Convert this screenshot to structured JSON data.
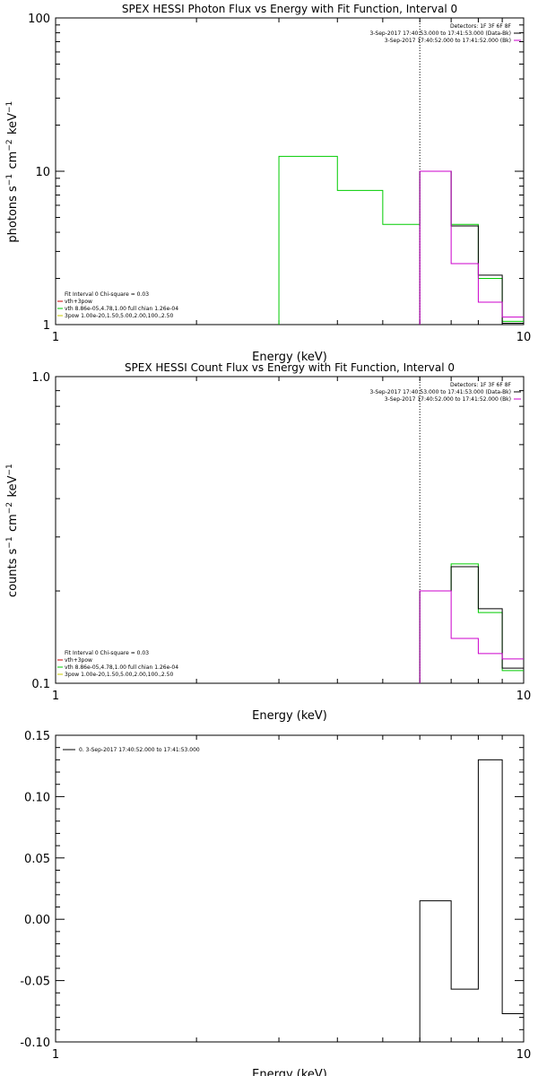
{
  "chart_data": [
    {
      "type": "line",
      "title": "SPEX HESSI Photon Flux vs Energy with Fit Function, Interval 0",
      "xlabel": "Energy (keV)",
      "ylabel": "photons s^-1 cm^-2 keV^-1",
      "xscale": "log",
      "yscale": "log",
      "xlim": [
        1,
        10
      ],
      "ylim": [
        1,
        100
      ],
      "xticks": [
        "1",
        "10"
      ],
      "yticks": [
        "1",
        "10",
        "100"
      ],
      "vline_x": 6.0,
      "legend_top": {
        "placement": "top-right",
        "lines": [
          {
            "text": "Detectors: 1F 3F 6F 8F",
            "color": ""
          },
          {
            "text": "3-Sep-2017 17:40:53.000 to 17:41:53.000 (Data-Bk)",
            "color": "#000000"
          },
          {
            "text": "3-Sep-2017 17:40:52.000 to 17:41:52.000 (Bk)",
            "color": "#cc00cc"
          }
        ]
      },
      "legend_bottom": {
        "placement": "bottom-left",
        "lines": [
          {
            "text": "Fit Interval 0   Chi-square = 0.03",
            "color": ""
          },
          {
            "text": "vth+3pow",
            "color": "#cc0000"
          },
          {
            "text": "vth 8.86e-05,4.78,1.00  full chian 1.26e-04",
            "color": "#00cc00"
          },
          {
            "text": "3pow 1.00e-20,1.50,5.00,2.00,100.,2.50",
            "color": "#cccc00"
          }
        ]
      },
      "series": [
        {
          "color": "#00cc00",
          "edges": [
            3,
            4,
            5,
            6,
            7,
            8,
            9,
            10
          ],
          "values": [
            12.5,
            7.5,
            4.5,
            10,
            4.5,
            2.0,
            1.05
          ]
        },
        {
          "color": "#000000",
          "edges": [
            6,
            7,
            8,
            9,
            10
          ],
          "values": [
            10,
            4.4,
            2.1,
            1.02
          ]
        },
        {
          "color": "#cc00cc",
          "edges": [
            6,
            7,
            8,
            9,
            10
          ],
          "values": [
            10,
            2.5,
            1.4,
            1.12
          ]
        }
      ]
    },
    {
      "type": "line",
      "title": "SPEX HESSI Count Flux vs Energy with Fit Function, Interval 0",
      "xlabel": "Energy (keV)",
      "ylabel": "counts s^-1 cm^-2 keV^-1",
      "xscale": "log",
      "yscale": "log",
      "xlim": [
        1,
        10
      ],
      "ylim": [
        0.1,
        1.0
      ],
      "xticks": [
        "1",
        "10"
      ],
      "yticks": [
        "0.1",
        "1.0"
      ],
      "vline_x": 6.0,
      "legend_top": {
        "placement": "top-right",
        "lines": [
          {
            "text": "Detectors: 1F 3F 6F 8F",
            "color": ""
          },
          {
            "text": "3-Sep-2017 17:40:53.000 to 17:41:53.000 (Data-Bk)",
            "color": "#000000"
          },
          {
            "text": "3-Sep-2017 17:40:52.000 to 17:41:52.000 (Bk)",
            "color": "#cc00cc"
          }
        ]
      },
      "legend_bottom": {
        "placement": "bottom-left",
        "lines": [
          {
            "text": "Fit Interval 0   Chi-square = 0.03",
            "color": ""
          },
          {
            "text": "vth+3pow",
            "color": "#cc0000"
          },
          {
            "text": "vth 8.86e-05,4.78,1.00  full chian 1.26e-04",
            "color": "#00cc00"
          },
          {
            "text": "3pow 1.00e-20,1.50,5.00,2.00,100.,2.50",
            "color": "#cccc00"
          }
        ]
      },
      "series": [
        {
          "color": "#00cc00",
          "edges": [
            6,
            7,
            8,
            9,
            10
          ],
          "values": [
            0.2,
            0.245,
            0.17,
            0.11
          ]
        },
        {
          "color": "#000000",
          "edges": [
            6,
            7,
            8,
            9,
            10
          ],
          "values": [
            0.2,
            0.24,
            0.175,
            0.112
          ]
        },
        {
          "color": "#cc00cc",
          "edges": [
            6,
            7,
            8,
            9,
            10
          ],
          "values": [
            0.2,
            0.14,
            0.125,
            0.12
          ]
        }
      ]
    },
    {
      "type": "line",
      "title": "",
      "xlabel": "Energy (keV)",
      "ylabel": "",
      "xscale": "log",
      "yscale": "linear",
      "xlim": [
        1,
        10
      ],
      "ylim": [
        -0.1,
        0.15
      ],
      "xticks": [
        "1",
        "10"
      ],
      "yticks": [
        "-0.10",
        "-0.05",
        "0.00",
        "0.05",
        "0.10",
        "0.15"
      ],
      "legend_top": {
        "placement": "top-left",
        "lines": [
          {
            "text": "0. 3-Sep-2017 17:40:52.000 to 17:41:53.000",
            "color": "#000000"
          }
        ]
      },
      "series": [
        {
          "color": "#000000",
          "edges": [
            6,
            7,
            8,
            9,
            10
          ],
          "values": [
            0.015,
            -0.057,
            0.13,
            -0.077
          ]
        }
      ]
    }
  ]
}
